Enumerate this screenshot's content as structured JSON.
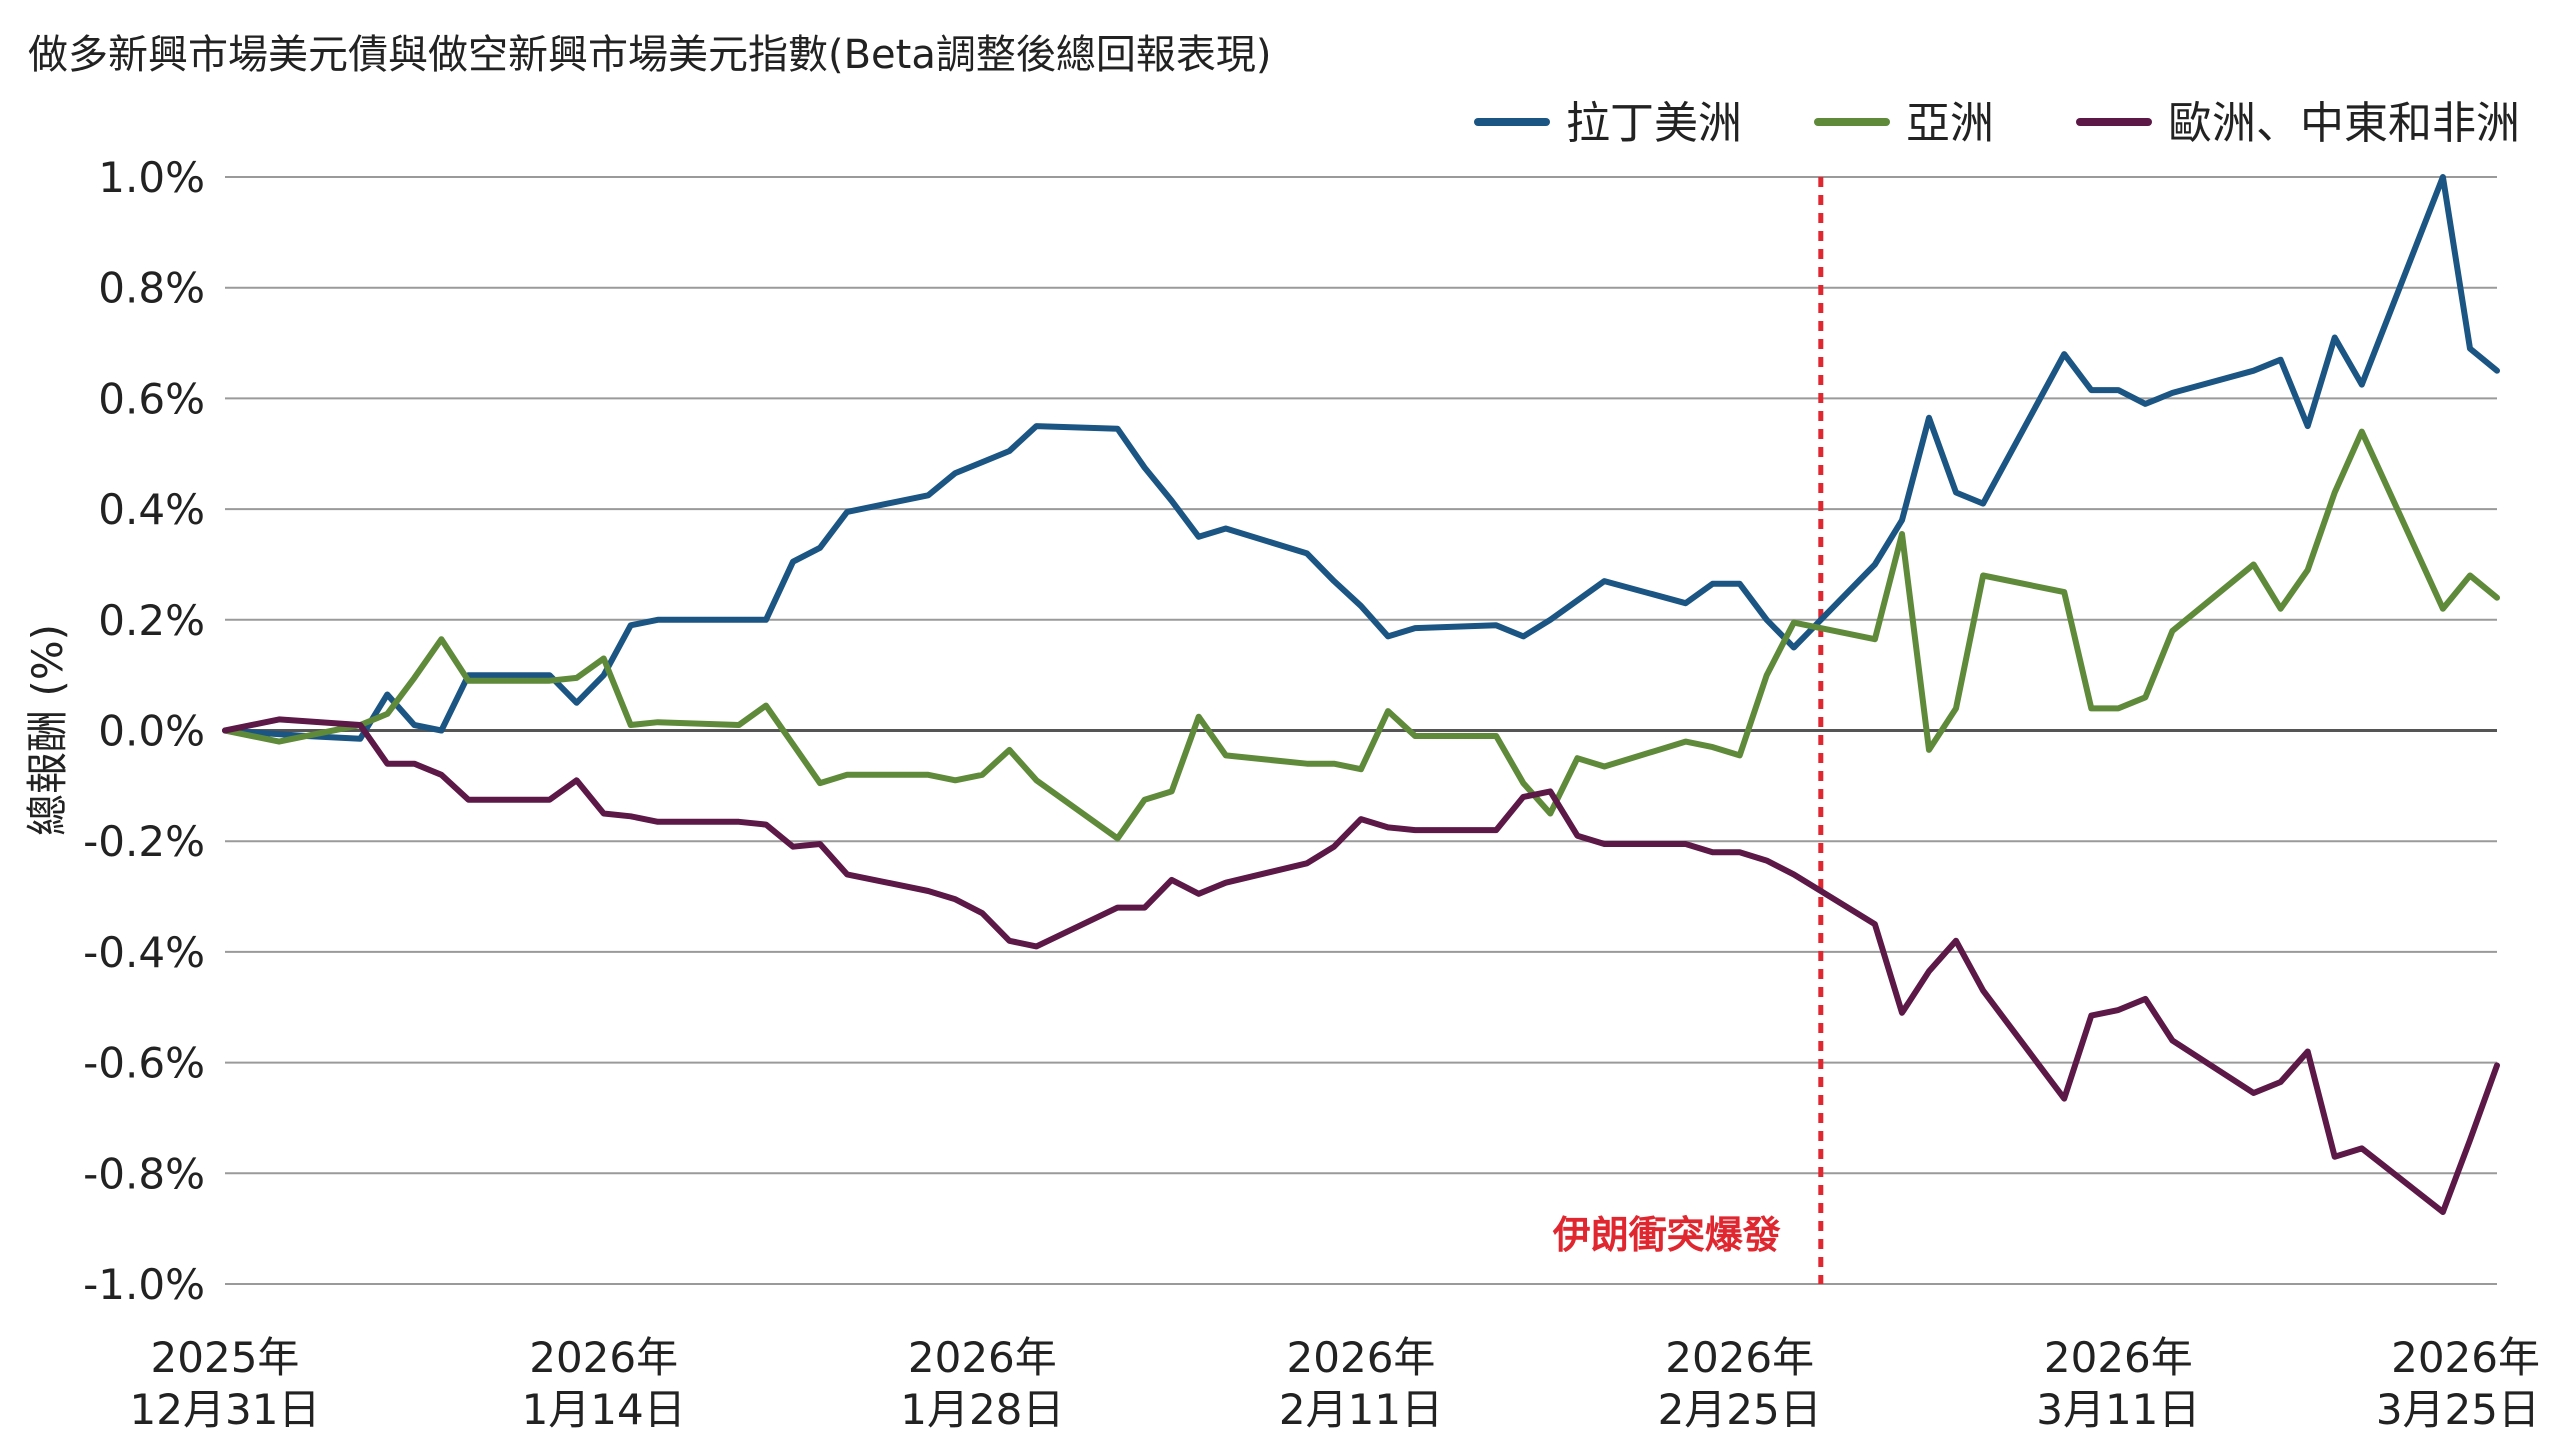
{
  "chart_data": {
    "type": "line",
    "title": "做多新興市場美元債與做空新興市場美元指數(Beta調整後總回報表現)",
    "ylabel": "總報酬 (%)",
    "xlabel": "",
    "ylim": [
      -1.0,
      1.0
    ],
    "y_ticks": [
      1.0,
      0.8,
      0.6,
      0.4,
      0.2,
      0.0,
      -0.2,
      -0.4,
      -0.6,
      -0.8,
      -1.0
    ],
    "y_tick_labels": [
      "1.0%",
      "0.8%",
      "0.6%",
      "0.4%",
      "0.2%",
      "0.0%",
      "-0.2%",
      "-0.4%",
      "-0.6%",
      "-0.8%",
      "-1.0%"
    ],
    "xlim": [
      "2025-12-31",
      "2026-03-25"
    ],
    "x_ticks": [
      {
        "date": "2025-12-31",
        "line1": "2025年",
        "line2": "12月31日"
      },
      {
        "date": "2026-01-14",
        "line1": "2026年",
        "line2": "1月14日"
      },
      {
        "date": "2026-01-28",
        "line1": "2026年",
        "line2": "1月28日"
      },
      {
        "date": "2026-02-11",
        "line1": "2026年",
        "line2": "2月11日"
      },
      {
        "date": "2026-02-25",
        "line1": "2026年",
        "line2": "2月25日"
      },
      {
        "date": "2026-03-11",
        "line1": "2026年",
        "line2": "3月11日"
      },
      {
        "date": "2026-03-25",
        "line1": "2026年",
        "line2": "3月25日"
      }
    ],
    "grid": true,
    "legend_position": "top-right",
    "annotations": [
      {
        "type": "vline",
        "date": "2026-02-28",
        "text": "伊朗衝突爆發",
        "color": "#e0262f"
      }
    ],
    "series": [
      {
        "name": "拉丁美洲",
        "color": "#1b5583",
        "points": [
          [
            "2025-12-31",
            0.0
          ],
          [
            "2026-01-03",
            -0.01
          ],
          [
            "2026-01-05",
            -0.015
          ],
          [
            "2026-01-06",
            0.065
          ],
          [
            "2026-01-07",
            0.01
          ],
          [
            "2026-01-08",
            0.0
          ],
          [
            "2026-01-09",
            0.1
          ],
          [
            "2026-01-12",
            0.1
          ],
          [
            "2026-01-13",
            0.05
          ],
          [
            "2026-01-14",
            0.1
          ],
          [
            "2026-01-15",
            0.19
          ],
          [
            "2026-01-16",
            0.2
          ],
          [
            "2026-01-19",
            0.2
          ],
          [
            "2026-01-20",
            0.2
          ],
          [
            "2026-01-21",
            0.305
          ],
          [
            "2026-01-22",
            0.33
          ],
          [
            "2026-01-23",
            0.395
          ],
          [
            "2026-01-26",
            0.425
          ],
          [
            "2026-01-27",
            0.465
          ],
          [
            "2026-01-28",
            0.485
          ],
          [
            "2026-01-29",
            0.505
          ],
          [
            "2026-01-30",
            0.55
          ],
          [
            "2026-02-02",
            0.545
          ],
          [
            "2026-02-03",
            0.475
          ],
          [
            "2026-02-04",
            0.415
          ],
          [
            "2026-02-05",
            0.35
          ],
          [
            "2026-02-06",
            0.365
          ],
          [
            "2026-02-09",
            0.32
          ],
          [
            "2026-02-10",
            0.27
          ],
          [
            "2026-02-11",
            0.225
          ],
          [
            "2026-02-12",
            0.17
          ],
          [
            "2026-02-13",
            0.185
          ],
          [
            "2026-02-16",
            0.19
          ],
          [
            "2026-02-17",
            0.17
          ],
          [
            "2026-02-18",
            0.2
          ],
          [
            "2026-02-19",
            0.235
          ],
          [
            "2026-02-20",
            0.27
          ],
          [
            "2026-02-23",
            0.23
          ],
          [
            "2026-02-24",
            0.265
          ],
          [
            "2026-02-25",
            0.265
          ],
          [
            "2026-02-26",
            0.2
          ],
          [
            "2026-02-27",
            0.15
          ],
          [
            "2026-03-02",
            0.3
          ],
          [
            "2026-03-03",
            0.38
          ],
          [
            "2026-03-04",
            0.565
          ],
          [
            "2026-03-05",
            0.43
          ],
          [
            "2026-03-06",
            0.41
          ],
          [
            "2026-03-09",
            0.68
          ],
          [
            "2026-03-10",
            0.615
          ],
          [
            "2026-03-11",
            0.615
          ],
          [
            "2026-03-12",
            0.59
          ],
          [
            "2026-03-13",
            0.61
          ],
          [
            "2026-03-16",
            0.65
          ],
          [
            "2026-03-17",
            0.67
          ],
          [
            "2026-03-18",
            0.55
          ],
          [
            "2026-03-19",
            0.71
          ],
          [
            "2026-03-20",
            0.625
          ],
          [
            "2026-03-23",
            1.0
          ],
          [
            "2026-03-24",
            0.69
          ],
          [
            "2026-03-25",
            0.65
          ]
        ]
      },
      {
        "name": "亞洲",
        "color": "#5e8a3a",
        "points": [
          [
            "2025-12-31",
            0.0
          ],
          [
            "2026-01-02",
            -0.02
          ],
          [
            "2026-01-05",
            0.01
          ],
          [
            "2026-01-06",
            0.03
          ],
          [
            "2026-01-07",
            0.095
          ],
          [
            "2026-01-08",
            0.165
          ],
          [
            "2026-01-09",
            0.09
          ],
          [
            "2026-01-12",
            0.09
          ],
          [
            "2026-01-13",
            0.095
          ],
          [
            "2026-01-14",
            0.13
          ],
          [
            "2026-01-15",
            0.01
          ],
          [
            "2026-01-16",
            0.015
          ],
          [
            "2026-01-19",
            0.01
          ],
          [
            "2026-01-20",
            0.045
          ],
          [
            "2026-01-21",
            -0.025
          ],
          [
            "2026-01-22",
            -0.095
          ],
          [
            "2026-01-23",
            -0.08
          ],
          [
            "2026-01-26",
            -0.08
          ],
          [
            "2026-01-27",
            -0.09
          ],
          [
            "2026-01-28",
            -0.08
          ],
          [
            "2026-01-29",
            -0.035
          ],
          [
            "2026-01-30",
            -0.09
          ],
          [
            "2026-02-02",
            -0.195
          ],
          [
            "2026-02-03",
            -0.125
          ],
          [
            "2026-02-04",
            -0.11
          ],
          [
            "2026-02-05",
            0.025
          ],
          [
            "2026-02-06",
            -0.045
          ],
          [
            "2026-02-09",
            -0.06
          ],
          [
            "2026-02-10",
            -0.06
          ],
          [
            "2026-02-11",
            -0.07
          ],
          [
            "2026-02-12",
            0.035
          ],
          [
            "2026-02-13",
            -0.01
          ],
          [
            "2026-02-16",
            -0.01
          ],
          [
            "2026-02-17",
            -0.095
          ],
          [
            "2026-02-18",
            -0.15
          ],
          [
            "2026-02-19",
            -0.05
          ],
          [
            "2026-02-20",
            -0.065
          ],
          [
            "2026-02-23",
            -0.02
          ],
          [
            "2026-02-24",
            -0.03
          ],
          [
            "2026-02-25",
            -0.045
          ],
          [
            "2026-02-26",
            0.1
          ],
          [
            "2026-02-27",
            0.195
          ],
          [
            "2026-03-02",
            0.165
          ],
          [
            "2026-03-03",
            0.355
          ],
          [
            "2026-03-04",
            -0.035
          ],
          [
            "2026-03-05",
            0.04
          ],
          [
            "2026-03-06",
            0.28
          ],
          [
            "2026-03-09",
            0.25
          ],
          [
            "2026-03-10",
            0.04
          ],
          [
            "2026-03-11",
            0.04
          ],
          [
            "2026-03-12",
            0.06
          ],
          [
            "2026-03-13",
            0.18
          ],
          [
            "2026-03-16",
            0.3
          ],
          [
            "2026-03-17",
            0.22
          ],
          [
            "2026-03-18",
            0.29
          ],
          [
            "2026-03-19",
            0.43
          ],
          [
            "2026-03-20",
            0.54
          ],
          [
            "2026-03-23",
            0.22
          ],
          [
            "2026-03-24",
            0.28
          ],
          [
            "2026-03-25",
            0.24
          ]
        ]
      },
      {
        "name": "歐洲、中東和非洲",
        "color": "#5c1847",
        "points": [
          [
            "2025-12-31",
            0.0
          ],
          [
            "2026-01-02",
            0.02
          ],
          [
            "2026-01-05",
            0.01
          ],
          [
            "2026-01-06",
            -0.06
          ],
          [
            "2026-01-07",
            -0.06
          ],
          [
            "2026-01-08",
            -0.08
          ],
          [
            "2026-01-09",
            -0.125
          ],
          [
            "2026-01-12",
            -0.125
          ],
          [
            "2026-01-13",
            -0.09
          ],
          [
            "2026-01-14",
            -0.15
          ],
          [
            "2026-01-15",
            -0.155
          ],
          [
            "2026-01-16",
            -0.165
          ],
          [
            "2026-01-19",
            -0.165
          ],
          [
            "2026-01-20",
            -0.17
          ],
          [
            "2026-01-21",
            -0.21
          ],
          [
            "2026-01-22",
            -0.205
          ],
          [
            "2026-01-23",
            -0.26
          ],
          [
            "2026-01-26",
            -0.29
          ],
          [
            "2026-01-27",
            -0.305
          ],
          [
            "2026-01-28",
            -0.33
          ],
          [
            "2026-01-29",
            -0.38
          ],
          [
            "2026-01-30",
            -0.39
          ],
          [
            "2026-02-02",
            -0.32
          ],
          [
            "2026-02-03",
            -0.32
          ],
          [
            "2026-02-04",
            -0.27
          ],
          [
            "2026-02-05",
            -0.295
          ],
          [
            "2026-02-06",
            -0.275
          ],
          [
            "2026-02-09",
            -0.24
          ],
          [
            "2026-02-10",
            -0.21
          ],
          [
            "2026-02-11",
            -0.16
          ],
          [
            "2026-02-12",
            -0.175
          ],
          [
            "2026-02-13",
            -0.18
          ],
          [
            "2026-02-16",
            -0.18
          ],
          [
            "2026-02-17",
            -0.12
          ],
          [
            "2026-02-18",
            -0.11
          ],
          [
            "2026-02-19",
            -0.19
          ],
          [
            "2026-02-20",
            -0.205
          ],
          [
            "2026-02-23",
            -0.205
          ],
          [
            "2026-02-24",
            -0.22
          ],
          [
            "2026-02-25",
            -0.22
          ],
          [
            "2026-02-26",
            -0.235
          ],
          [
            "2026-02-27",
            -0.26
          ],
          [
            "2026-03-02",
            -0.35
          ],
          [
            "2026-03-03",
            -0.51
          ],
          [
            "2026-03-04",
            -0.435
          ],
          [
            "2026-03-05",
            -0.38
          ],
          [
            "2026-03-06",
            -0.47
          ],
          [
            "2026-03-09",
            -0.665
          ],
          [
            "2026-03-10",
            -0.515
          ],
          [
            "2026-03-11",
            -0.505
          ],
          [
            "2026-03-12",
            -0.485
          ],
          [
            "2026-03-13",
            -0.56
          ],
          [
            "2026-03-16",
            -0.655
          ],
          [
            "2026-03-17",
            -0.635
          ],
          [
            "2026-03-18",
            -0.58
          ],
          [
            "2026-03-19",
            -0.77
          ],
          [
            "2026-03-20",
            -0.755
          ],
          [
            "2026-03-23",
            -0.87
          ],
          [
            "2026-03-24",
            -0.74
          ],
          [
            "2026-03-25",
            -0.605
          ]
        ]
      }
    ]
  }
}
